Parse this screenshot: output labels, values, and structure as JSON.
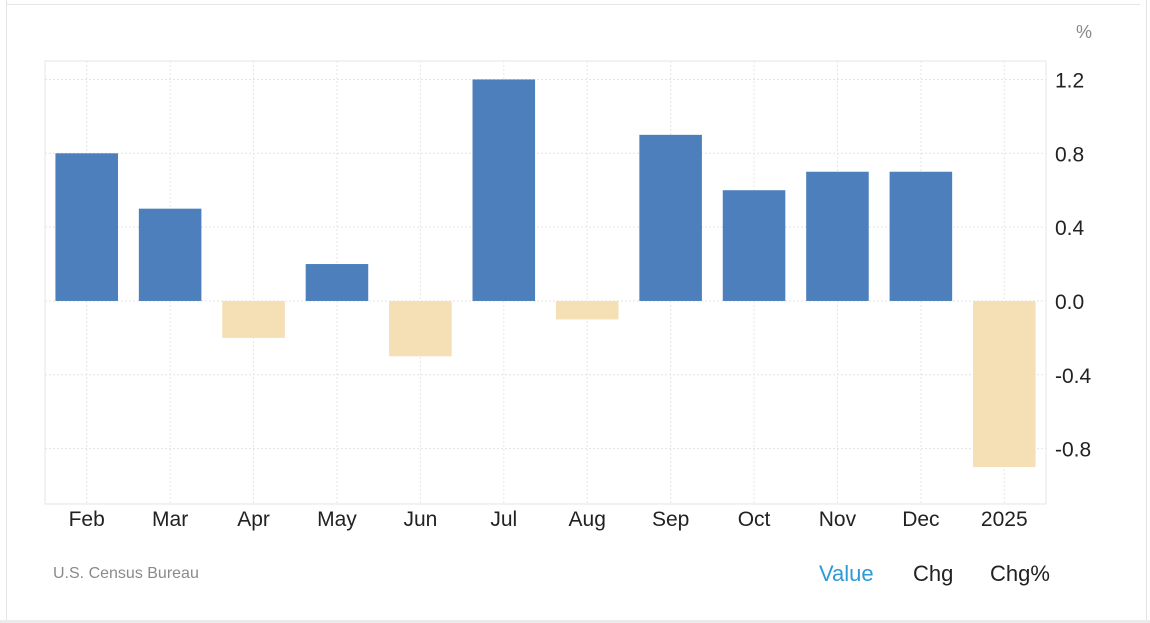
{
  "chart_data": {
    "type": "bar",
    "unit": "%",
    "categories": [
      "Feb",
      "Mar",
      "Apr",
      "May",
      "Jun",
      "Jul",
      "Aug",
      "Sep",
      "Oct",
      "Nov",
      "Dec",
      "2025"
    ],
    "values": [
      0.8,
      0.5,
      -0.2,
      0.2,
      -0.3,
      1.2,
      -0.1,
      0.9,
      0.6,
      0.7,
      0.7,
      -0.9
    ],
    "ylim": [
      -1.1,
      1.3
    ],
    "yticks": [
      1.2,
      0.8,
      0.4,
      0.0,
      -0.4,
      -0.8
    ],
    "ytick_labels": [
      "1.2",
      "0.8",
      "0.4",
      "0.0",
      "-0.4",
      "-0.8"
    ],
    "y_axis_position": "right",
    "grid": true,
    "colors": {
      "positive": "#4d7fbc",
      "negative": "#f5dfb5"
    }
  },
  "footer": {
    "source": "U.S. Census Bureau",
    "tabs": [
      {
        "label": "Value",
        "active": true
      },
      {
        "label": "Chg",
        "active": false
      },
      {
        "label": "Chg%",
        "active": false
      }
    ]
  }
}
